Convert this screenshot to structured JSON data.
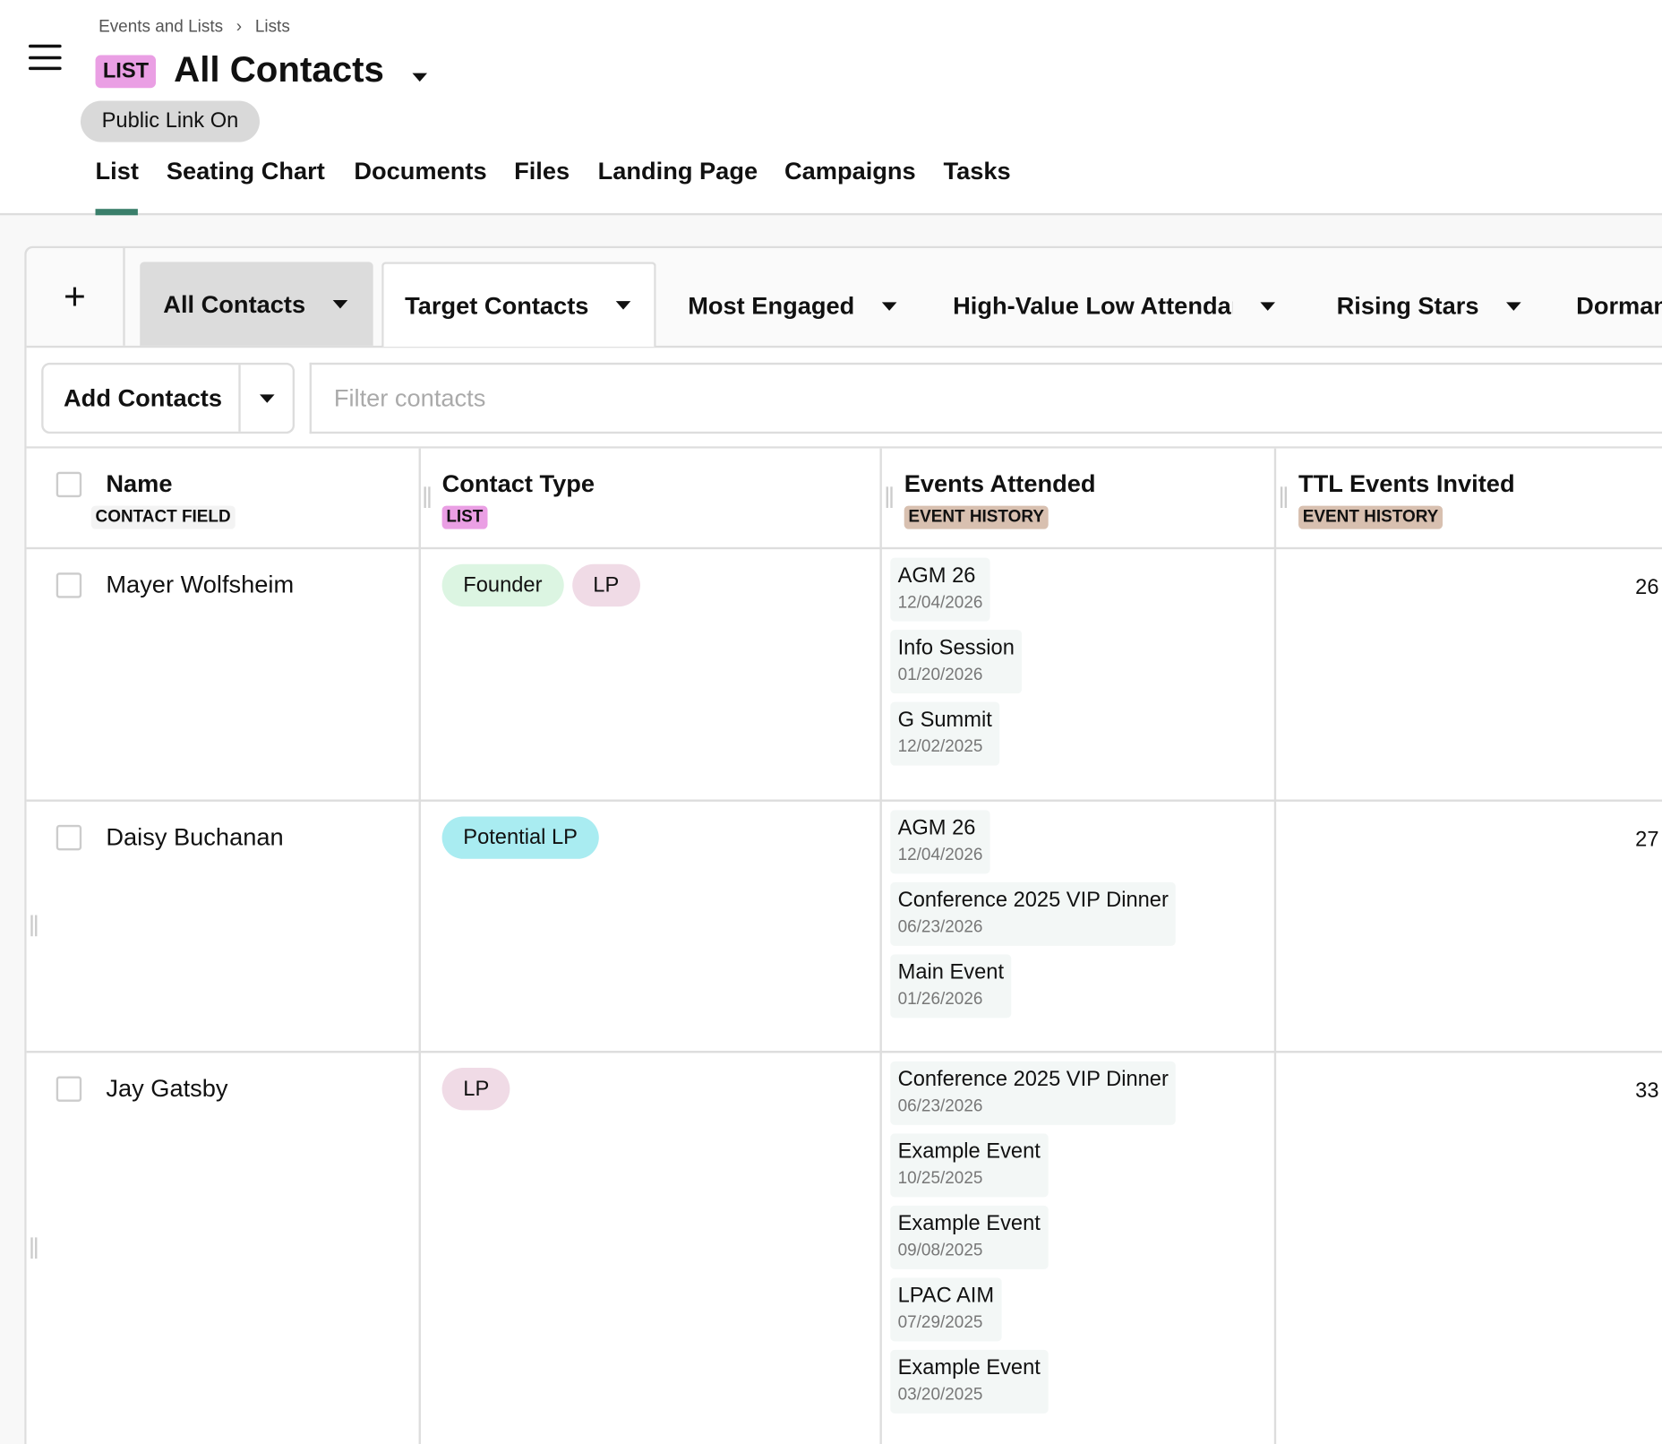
{
  "breadcrumb": [
    "Events and Lists",
    "Lists"
  ],
  "breadcrumb_sep": "›",
  "header": {
    "badge": "LIST",
    "title": "All Contacts",
    "public_link": "Public Link On"
  },
  "nav_tabs": [
    "List",
    "Seating Chart",
    "Documents",
    "Files",
    "Landing Page",
    "Campaigns",
    "Tasks"
  ],
  "active_nav_tab": "List",
  "view_tabs": [
    "All Contacts",
    "Target Contacts",
    "Most Engaged",
    "High-Value Low Attendar",
    "Rising Stars",
    "Dorman"
  ],
  "add_view_label": "+",
  "toolbar": {
    "add_contacts": "Add Contacts",
    "filter_placeholder": "Filter contacts"
  },
  "columns": [
    {
      "title": "Name",
      "tag": "CONTACT FIELD",
      "tag_color": "#f3f3f3"
    },
    {
      "title": "Contact Type",
      "tag": "LIST",
      "tag_color": "#ea9fe4"
    },
    {
      "title": "Events Attended",
      "tag": "EVENT HISTORY",
      "tag_color": "#d8c0b0"
    },
    {
      "title": "TTL Events Invited",
      "tag": "EVENT HISTORY",
      "tag_color": "#d8c0b0"
    }
  ],
  "colors": {
    "accent": "#3a7f6b",
    "founder": "#dcf5e2",
    "lp": "#f0dbe6",
    "potential_lp": "#a9ecf1"
  },
  "rows": [
    {
      "name": "Mayer Wolfsheim",
      "types": [
        {
          "label": "Founder",
          "color": "#dcf5e2"
        },
        {
          "label": "LP",
          "color": "#f0dbe6"
        }
      ],
      "events": [
        {
          "title": "AGM 26",
          "date": "12/04/2026"
        },
        {
          "title": "Info Session",
          "date": "01/20/2026"
        },
        {
          "title": "G Summit",
          "date": "12/02/2025"
        }
      ],
      "invited": "26"
    },
    {
      "name": "Daisy Buchanan",
      "types": [
        {
          "label": "Potential LP",
          "color": "#a9ecf1"
        }
      ],
      "events": [
        {
          "title": "AGM 26",
          "date": "12/04/2026"
        },
        {
          "title": "Conference 2025 VIP Dinner",
          "date": "06/23/2026"
        },
        {
          "title": "Main Event",
          "date": "01/26/2026"
        }
      ],
      "invited": "27"
    },
    {
      "name": "Jay Gatsby",
      "types": [
        {
          "label": "LP",
          "color": "#f0dbe6"
        }
      ],
      "events": [
        {
          "title": "Conference 2025 VIP Dinner",
          "date": "06/23/2026"
        },
        {
          "title": "Example Event",
          "date": "10/25/2025"
        },
        {
          "title": "Example Event",
          "date": "09/08/2025"
        },
        {
          "title": "LPAC AIM",
          "date": "07/29/2025"
        },
        {
          "title": "Example Event",
          "date": "03/20/2025"
        }
      ],
      "invited": "33"
    }
  ]
}
